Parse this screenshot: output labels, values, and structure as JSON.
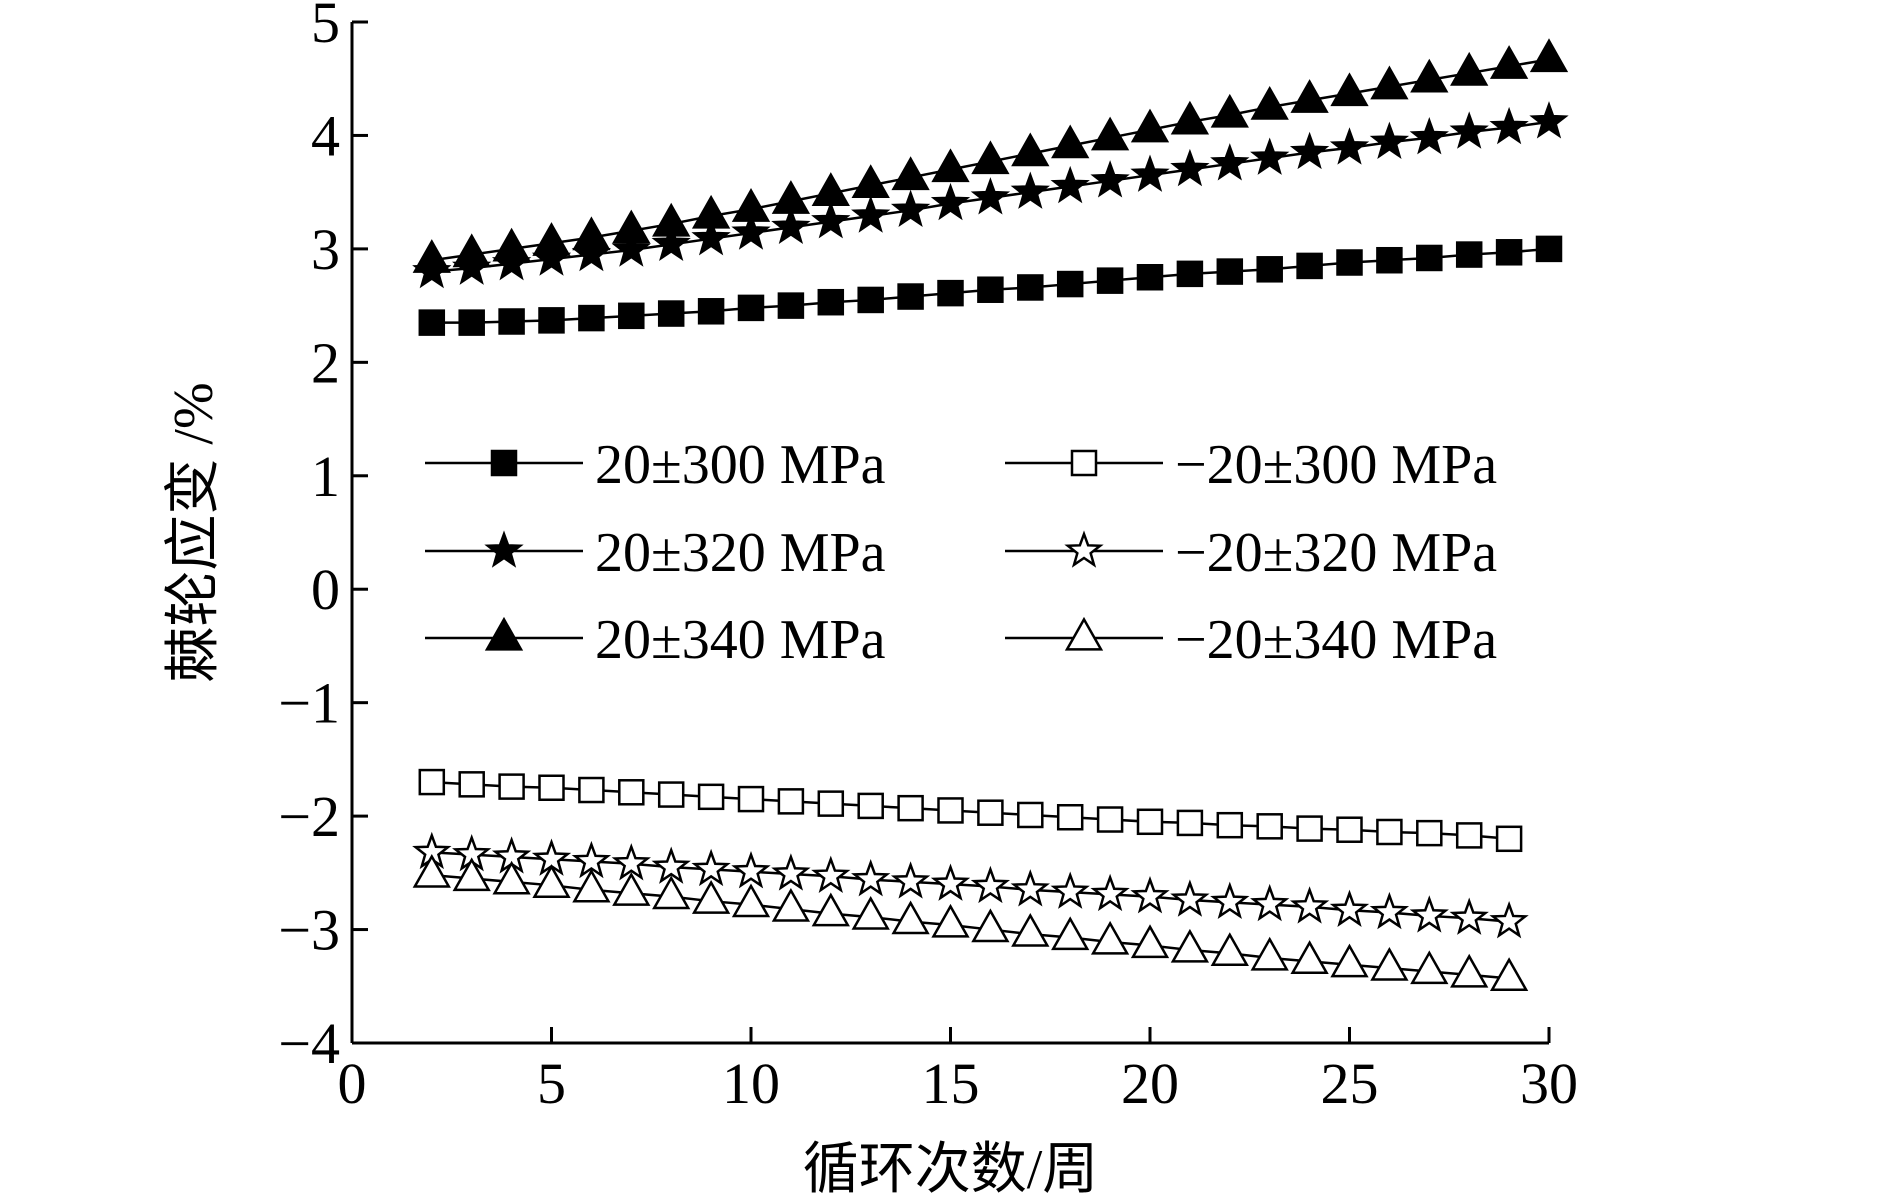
{
  "chart_data": {
    "type": "line",
    "title": "",
    "xlabel": "循环次数/周",
    "ylabel": "棘轮应变 /%",
    "xlim": [
      0,
      30
    ],
    "ylim": [
      -4,
      5
    ],
    "xticks": [
      0,
      5,
      10,
      15,
      20,
      25,
      30
    ],
    "yticks": [
      -4,
      -3,
      -2,
      -1,
      0,
      1,
      2,
      3,
      4,
      5
    ],
    "xtick_labels": [
      "0",
      "5",
      "10",
      "15",
      "20",
      "25",
      "30"
    ],
    "ytick_labels": [
      "−4",
      "−3",
      "−2",
      "−1",
      "0",
      "1",
      "2",
      "3",
      "4",
      "5"
    ],
    "grid": false,
    "legend_position": "center",
    "series": [
      {
        "name": "20±300 MPa",
        "marker": "square",
        "filled": true,
        "x": [
          2,
          3,
          4,
          5,
          6,
          7,
          8,
          9,
          10,
          11,
          12,
          13,
          14,
          15,
          16,
          17,
          18,
          19,
          20,
          21,
          22,
          23,
          24,
          25,
          26,
          27,
          28,
          29,
          30
        ],
        "y": [
          2.35,
          2.35,
          2.36,
          2.37,
          2.39,
          2.41,
          2.43,
          2.45,
          2.48,
          2.5,
          2.53,
          2.55,
          2.58,
          2.61,
          2.64,
          2.66,
          2.69,
          2.72,
          2.75,
          2.78,
          2.8,
          2.82,
          2.85,
          2.88,
          2.9,
          2.92,
          2.95,
          2.97,
          3.0
        ]
      },
      {
        "name": "−20±300 MPa",
        "marker": "square",
        "filled": false,
        "x": [
          2,
          3,
          4,
          5,
          6,
          7,
          8,
          9,
          10,
          11,
          12,
          13,
          14,
          15,
          16,
          17,
          18,
          19,
          20,
          21,
          22,
          23,
          24,
          25,
          26,
          27,
          28,
          29
        ],
        "y": [
          -1.7,
          -1.72,
          -1.74,
          -1.75,
          -1.77,
          -1.79,
          -1.81,
          -1.83,
          -1.85,
          -1.87,
          -1.89,
          -1.91,
          -1.93,
          -1.95,
          -1.97,
          -1.99,
          -2.01,
          -2.03,
          -2.05,
          -2.06,
          -2.08,
          -2.09,
          -2.11,
          -2.12,
          -2.14,
          -2.15,
          -2.17,
          -2.2
        ]
      },
      {
        "name": "20±320 MPa",
        "marker": "star",
        "filled": true,
        "x": [
          2,
          3,
          4,
          5,
          6,
          7,
          8,
          9,
          10,
          11,
          12,
          13,
          14,
          15,
          16,
          17,
          18,
          19,
          20,
          21,
          22,
          23,
          24,
          25,
          26,
          27,
          28,
          29,
          30
        ],
        "y": [
          2.8,
          2.83,
          2.87,
          2.91,
          2.95,
          2.99,
          3.04,
          3.09,
          3.14,
          3.19,
          3.24,
          3.29,
          3.34,
          3.4,
          3.45,
          3.5,
          3.55,
          3.6,
          3.65,
          3.7,
          3.75,
          3.8,
          3.85,
          3.89,
          3.94,
          3.98,
          4.03,
          4.07,
          4.12
        ]
      },
      {
        "name": "−20±320 MPa",
        "marker": "star",
        "filled": false,
        "x": [
          2,
          3,
          4,
          5,
          6,
          7,
          8,
          9,
          10,
          11,
          12,
          13,
          14,
          15,
          16,
          17,
          18,
          19,
          20,
          21,
          22,
          23,
          24,
          25,
          26,
          27,
          28,
          29
        ],
        "y": [
          -2.32,
          -2.34,
          -2.36,
          -2.38,
          -2.4,
          -2.42,
          -2.45,
          -2.47,
          -2.49,
          -2.51,
          -2.53,
          -2.56,
          -2.58,
          -2.6,
          -2.62,
          -2.65,
          -2.67,
          -2.69,
          -2.71,
          -2.74,
          -2.76,
          -2.78,
          -2.8,
          -2.83,
          -2.85,
          -2.88,
          -2.9,
          -2.93
        ]
      },
      {
        "name": "20±340 MPa",
        "marker": "triangle",
        "filled": true,
        "x": [
          2,
          3,
          4,
          5,
          6,
          7,
          8,
          9,
          10,
          11,
          12,
          13,
          14,
          15,
          16,
          17,
          18,
          19,
          20,
          21,
          22,
          23,
          24,
          25,
          26,
          27,
          28,
          29,
          30
        ],
        "y": [
          2.9,
          2.95,
          3.0,
          3.05,
          3.1,
          3.16,
          3.22,
          3.29,
          3.35,
          3.42,
          3.49,
          3.56,
          3.63,
          3.7,
          3.77,
          3.84,
          3.91,
          3.98,
          4.05,
          4.12,
          4.18,
          4.25,
          4.31,
          4.37,
          4.43,
          4.49,
          4.55,
          4.61,
          4.67
        ]
      },
      {
        "name": "−20±340 MPa",
        "marker": "triangle",
        "filled": false,
        "x": [
          2,
          3,
          4,
          5,
          6,
          7,
          8,
          9,
          10,
          11,
          12,
          13,
          14,
          15,
          16,
          17,
          18,
          19,
          20,
          21,
          22,
          23,
          24,
          25,
          26,
          27,
          28,
          29
        ],
        "y": [
          -2.52,
          -2.55,
          -2.58,
          -2.61,
          -2.65,
          -2.68,
          -2.71,
          -2.75,
          -2.78,
          -2.82,
          -2.86,
          -2.89,
          -2.93,
          -2.96,
          -3.0,
          -3.04,
          -3.07,
          -3.11,
          -3.14,
          -3.18,
          -3.21,
          -3.25,
          -3.28,
          -3.31,
          -3.34,
          -3.37,
          -3.4,
          -3.43
        ]
      }
    ]
  },
  "colors": {
    "ink": "#000000",
    "background": "#ffffff"
  }
}
